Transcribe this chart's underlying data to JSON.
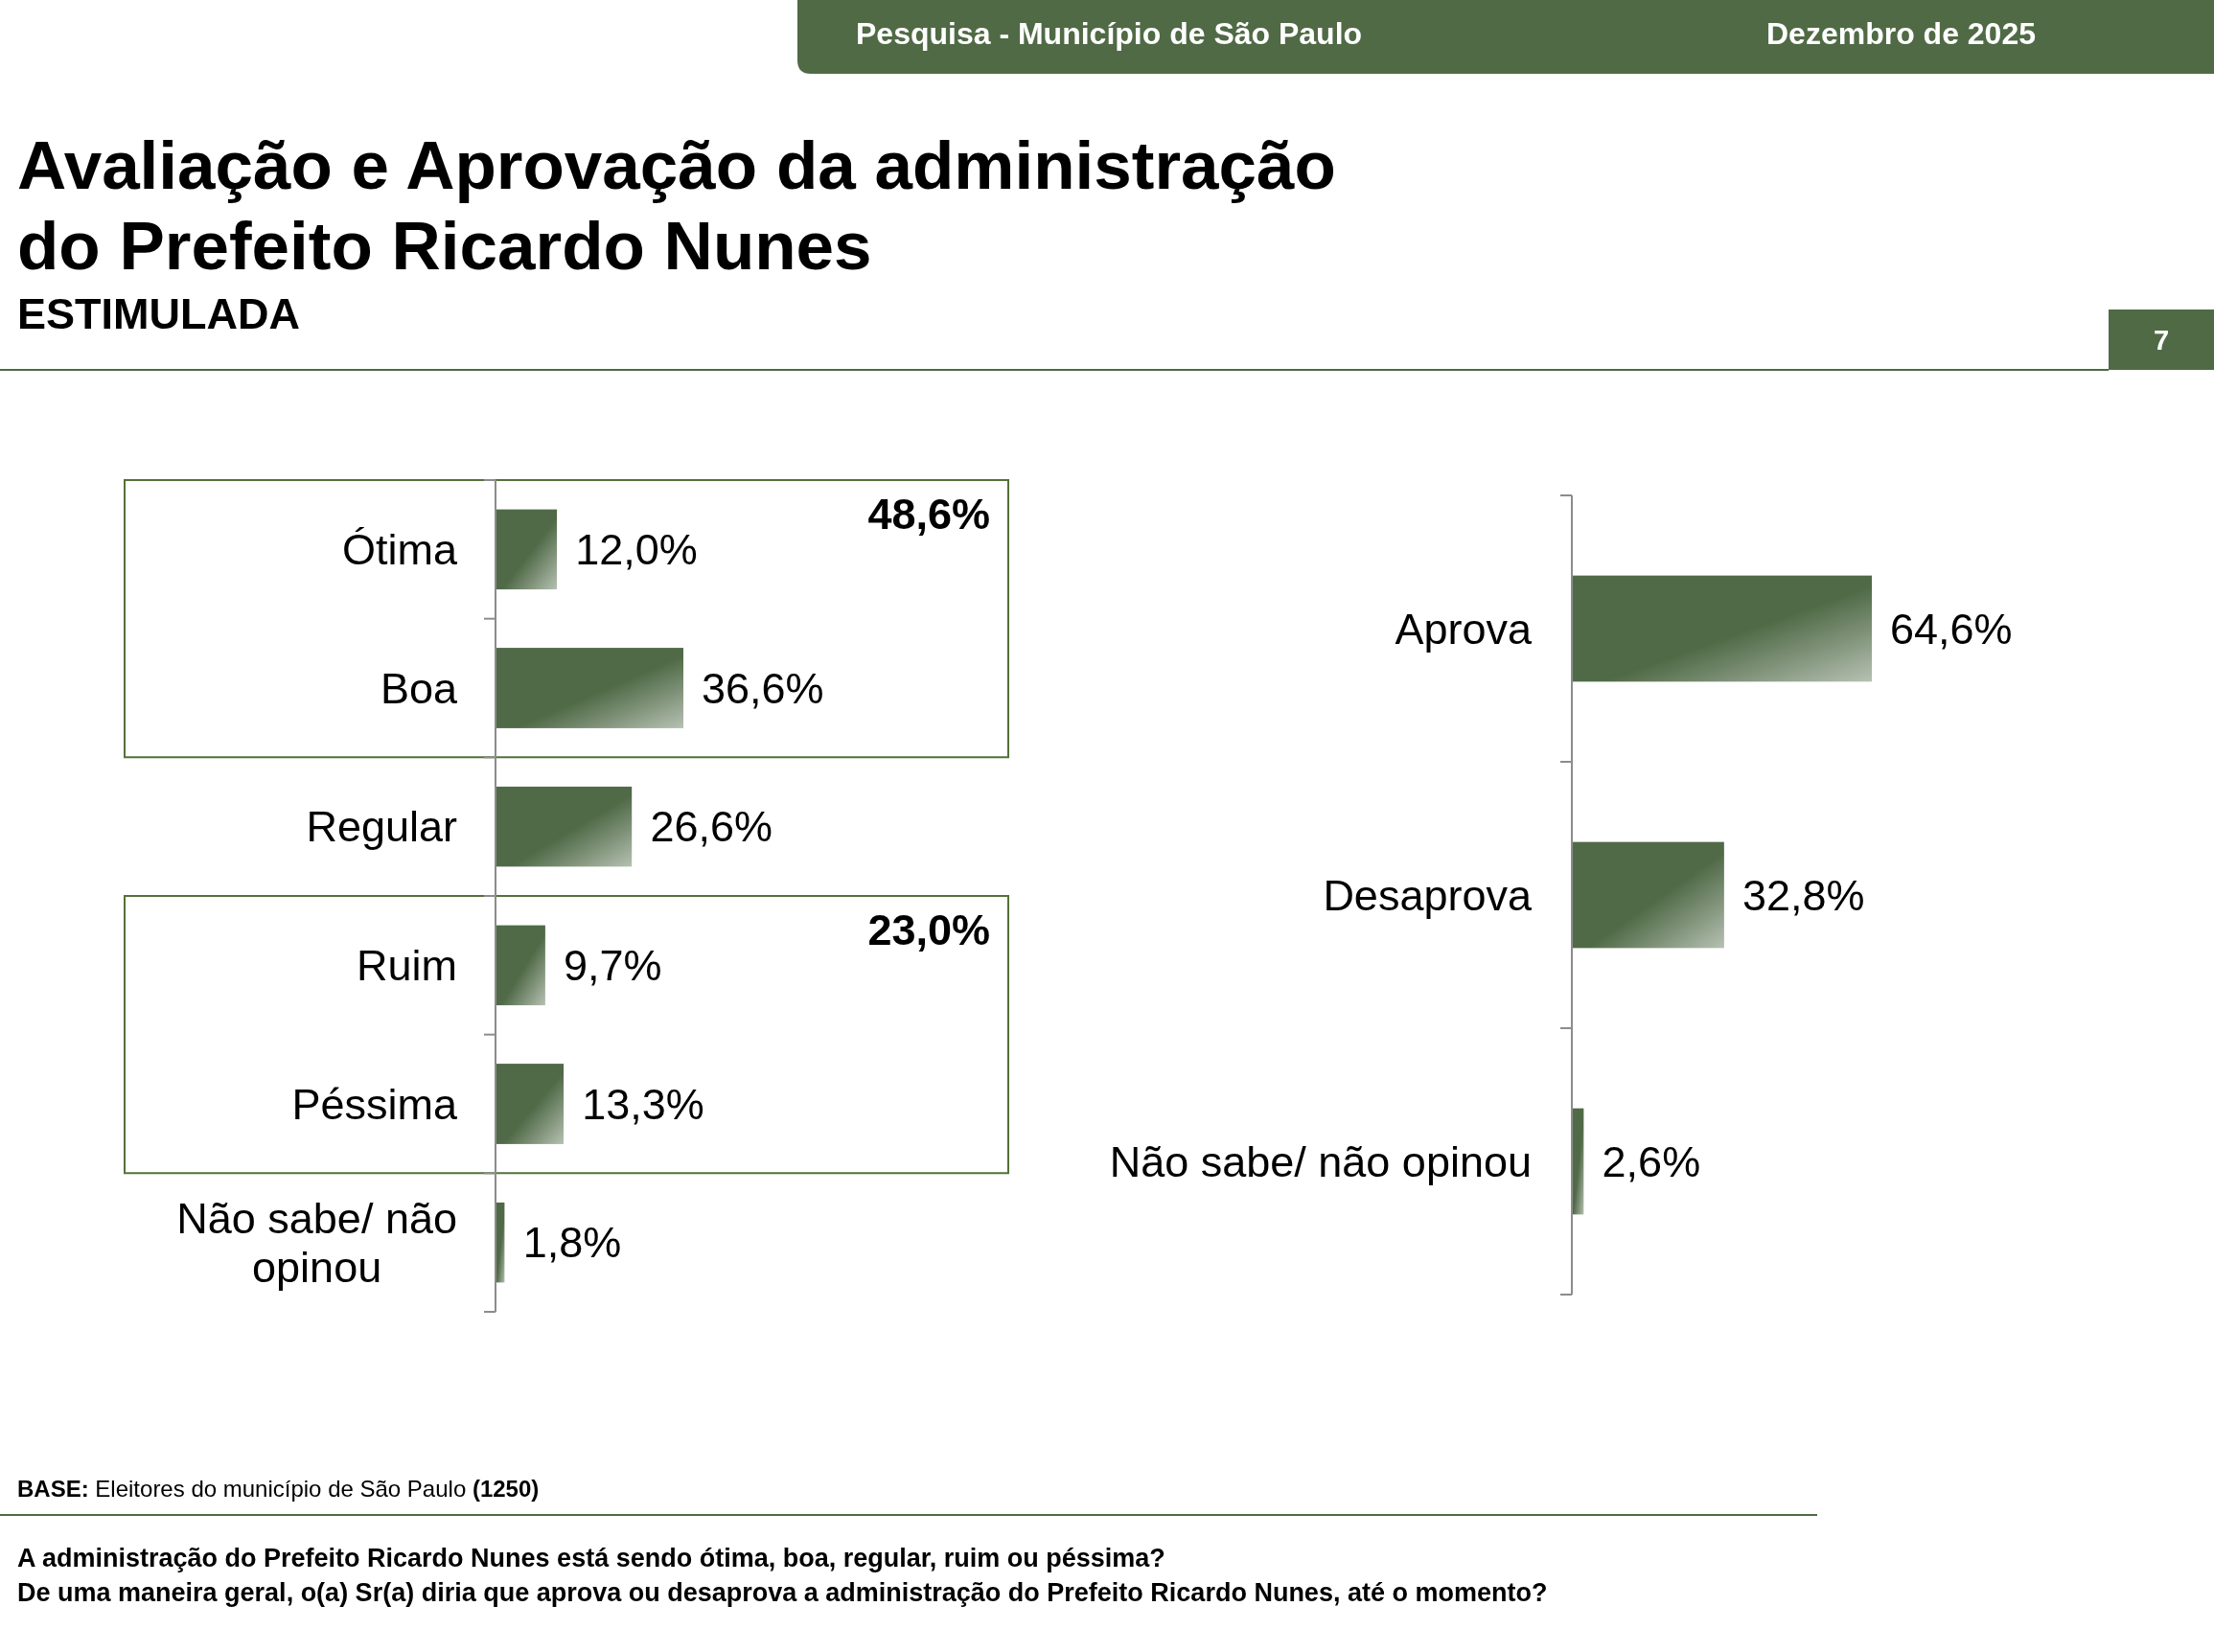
{
  "chart_data": [
    {
      "type": "bar",
      "orientation": "horizontal",
      "title": "Avaliação e Aprovação da administração do Prefeito Ricardo Nunes",
      "subtitle": "ESTIMULADA",
      "categories": [
        "Ótima",
        "Boa",
        "Regular",
        "Ruim",
        "Péssima",
        "Não sabe/ não opinou"
      ],
      "values": [
        12.0,
        36.6,
        26.6,
        9.7,
        13.3,
        1.8
      ],
      "value_labels": [
        "12,0%",
        "36,6%",
        "26,6%",
        "9,7%",
        "13,3%",
        "1,8%"
      ],
      "color": "#506a47",
      "xlim": [
        0,
        36.6
      ],
      "tick_labels": "y",
      "annotations": [
        "Pesquisa - Município de São Paulo",
        "Dezembro de 2025",
        "7",
        "48,6%",
        "23,0%",
        "BASE: Eleitores do município de São Paulo (1250)",
        "A administração do Prefeito Ricardo Nunes está sendo ótima, boa, regular, ruim ou péssima?",
        "De uma maneira geral, o(a) Sr(a) diria que aprova ou desaprova a administração do Prefeito Ricardo Nunes, até o momento?"
      ]
    },
    {
      "type": "bar",
      "orientation": "horizontal",
      "categories": [
        "Aprova",
        "Desaprova",
        "Não sabe/ não opinou"
      ],
      "values": [
        64.6,
        32.8,
        2.6
      ],
      "value_labels": [
        "64,6%",
        "32,8%",
        "2,6%"
      ],
      "color": "#506a47",
      "xlim": [
        0,
        64.6
      ],
      "tick_labels": "y"
    }
  ]
}
